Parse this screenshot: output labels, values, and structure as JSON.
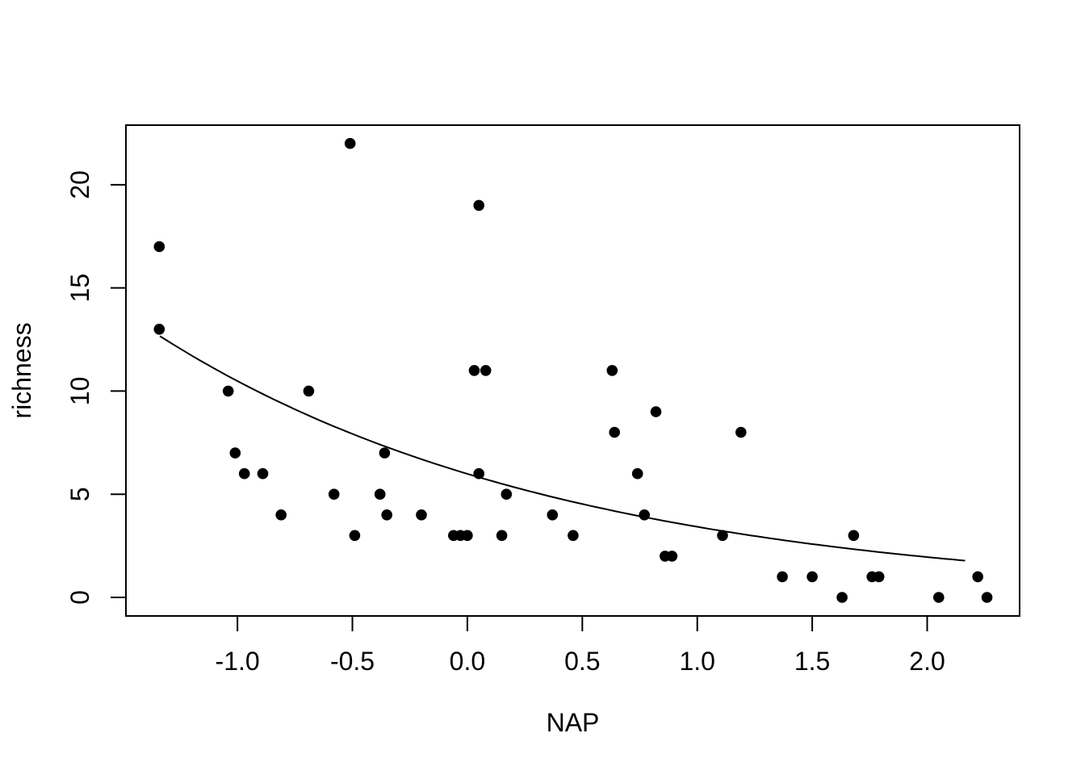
{
  "figure": {
    "background": "#ffffff",
    "foreground": "#000000"
  },
  "chart_data": {
    "type": "scatter",
    "title": "",
    "xlabel": "NAP",
    "ylabel": "richness",
    "xlim": [
      -1.485,
      2.402
    ],
    "ylim": [
      -0.9,
      22.89
    ],
    "grid": false,
    "legend": "none",
    "x_ticks": [
      -1.0,
      -0.5,
      0.0,
      0.5,
      1.0,
      1.5,
      2.0
    ],
    "x_tick_labels": [
      "-1.0",
      "-0.5",
      "0.0",
      "0.5",
      "1.0",
      "1.5",
      "2.0"
    ],
    "y_ticks": [
      0,
      5,
      10,
      15,
      20
    ],
    "y_tick_labels": [
      "0",
      "5",
      "10",
      "15",
      "20"
    ],
    "point_color": "#000000",
    "curve_color": "#000000",
    "points": [
      [
        -1.34,
        17
      ],
      [
        -1.34,
        13
      ],
      [
        -1.04,
        10
      ],
      [
        -1.01,
        7
      ],
      [
        -0.97,
        6
      ],
      [
        -0.89,
        6
      ],
      [
        -0.81,
        4
      ],
      [
        -0.69,
        10
      ],
      [
        -0.58,
        5
      ],
      [
        -0.51,
        22
      ],
      [
        -0.49,
        3
      ],
      [
        -0.38,
        5
      ],
      [
        -0.36,
        7
      ],
      [
        -0.35,
        4
      ],
      [
        -0.2,
        4
      ],
      [
        -0.06,
        3
      ],
      [
        -0.03,
        3
      ],
      [
        0.0,
        3
      ],
      [
        0.03,
        11
      ],
      [
        0.05,
        19
      ],
      [
        0.05,
        6
      ],
      [
        0.08,
        11
      ],
      [
        0.15,
        3
      ],
      [
        0.17,
        5
      ],
      [
        0.37,
        4
      ],
      [
        0.46,
        3
      ],
      [
        0.63,
        11
      ],
      [
        0.64,
        8
      ],
      [
        0.74,
        6
      ],
      [
        0.77,
        4
      ],
      [
        0.82,
        9
      ],
      [
        0.86,
        2
      ],
      [
        0.89,
        2
      ],
      [
        1.11,
        3
      ],
      [
        1.19,
        8
      ],
      [
        1.37,
        1
      ],
      [
        1.5,
        1
      ],
      [
        1.63,
        0
      ],
      [
        1.68,
        3
      ],
      [
        1.76,
        1
      ],
      [
        1.79,
        1
      ],
      [
        2.05,
        0
      ],
      [
        2.22,
        1
      ],
      [
        2.26,
        0
      ]
    ],
    "fit_curve": {
      "model": "richness = exp(intercept + slope * NAP)",
      "intercept": 1.79,
      "slope": -0.56,
      "x_range": [
        -1.337,
        2.165
      ]
    }
  }
}
